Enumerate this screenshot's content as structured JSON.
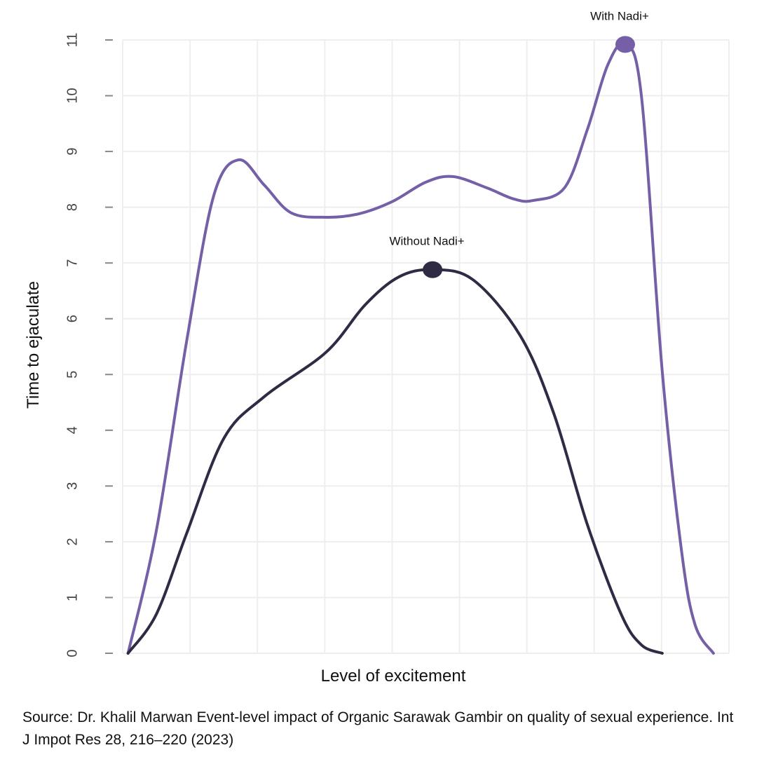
{
  "chart_data": {
    "type": "line",
    "title": "",
    "xlabel": "Level of excitement",
    "ylabel": "Time to ejaculate",
    "xlim": [
      0,
      9
    ],
    "ylim": [
      0,
      11
    ],
    "x_grid_count": 9,
    "y_ticks": [
      0,
      1,
      2,
      3,
      4,
      5,
      6,
      7,
      8,
      9,
      10,
      11
    ],
    "grid": true,
    "series": [
      {
        "name": "With Nadi+",
        "color": "#7560a8",
        "points": [
          [
            0.08,
            0
          ],
          [
            0.5,
            2.2
          ],
          [
            0.95,
            5.6
          ],
          [
            1.35,
            8.2
          ],
          [
            1.72,
            8.85
          ],
          [
            2.1,
            8.4
          ],
          [
            2.5,
            7.9
          ],
          [
            3.02,
            7.82
          ],
          [
            3.5,
            7.88
          ],
          [
            4.0,
            8.1
          ],
          [
            4.5,
            8.45
          ],
          [
            4.9,
            8.55
          ],
          [
            5.4,
            8.35
          ],
          [
            5.8,
            8.15
          ],
          [
            6.09,
            8.12
          ],
          [
            6.56,
            8.35
          ],
          [
            6.9,
            9.4
          ],
          [
            7.2,
            10.55
          ],
          [
            7.46,
            10.92
          ],
          [
            7.7,
            10.0
          ],
          [
            8.01,
            5.05
          ],
          [
            8.3,
            1.8
          ],
          [
            8.5,
            0.5
          ],
          [
            8.77,
            0
          ]
        ],
        "highlight": {
          "x": 7.46,
          "y": 10.92,
          "label": "With Nadi+"
        }
      },
      {
        "name": "Without Nadi+",
        "color": "#2f2b44",
        "points": [
          [
            0.08,
            0
          ],
          [
            0.5,
            0.7
          ],
          [
            0.95,
            2.15
          ],
          [
            1.5,
            3.85
          ],
          [
            2.1,
            4.6
          ],
          [
            3.02,
            5.4
          ],
          [
            3.6,
            6.25
          ],
          [
            4.1,
            6.75
          ],
          [
            4.6,
            6.88
          ],
          [
            5.2,
            6.7
          ],
          [
            5.9,
            5.7
          ],
          [
            6.4,
            4.3
          ],
          [
            6.9,
            2.3
          ],
          [
            7.4,
            0.7
          ],
          [
            7.7,
            0.15
          ],
          [
            8.01,
            0
          ]
        ],
        "highlight": {
          "x": 4.6,
          "y": 6.88,
          "label": "Without Nadi+"
        }
      }
    ]
  },
  "source": "Source: Dr. Khalil Marwan Event-level impact of Organic Sarawak Gambir on quality of sexual experience. Int J Impot Res 28, 216–220 (2023)",
  "colors": {
    "grid": "#eeeeee",
    "tick": "#888888"
  }
}
